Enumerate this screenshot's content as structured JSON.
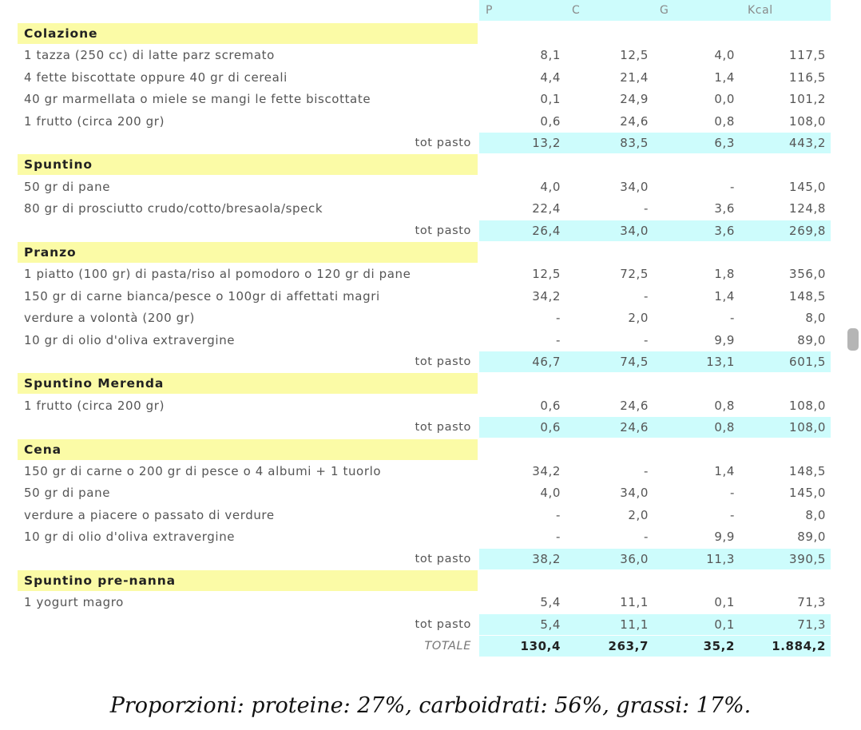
{
  "columns": [
    "P",
    "C",
    "G",
    "Kcal"
  ],
  "tot_label": "tot pasto",
  "sections": [
    {
      "title": "Colazione",
      "items": [
        {
          "label": "1 tazza (250 cc) di latte parz scremato",
          "p": "8,1",
          "c": "12,5",
          "g": "4,0",
          "k": "117,5"
        },
        {
          "label": "4 fette biscottate oppure 40 gr di cereali",
          "p": "4,4",
          "c": "21,4",
          "g": "1,4",
          "k": "116,5"
        },
        {
          "label": "40 gr marmellata o miele se mangi le fette biscottate",
          "p": "0,1",
          "c": "24,9",
          "g": "0,0",
          "k": "101,2"
        },
        {
          "label": "1 frutto (circa 200 gr)",
          "p": "0,6",
          "c": "24,6",
          "g": "0,8",
          "k": "108,0"
        }
      ],
      "total": {
        "p": "13,2",
        "c": "83,5",
        "g": "6,3",
        "k": "443,2"
      }
    },
    {
      "title": "Spuntino",
      "items": [
        {
          "label": "50 gr di pane",
          "p": "4,0",
          "c": "34,0",
          "g": "-",
          "k": "145,0"
        },
        {
          "label": "80 gr di prosciutto crudo/cotto/bresaola/speck",
          "p": "22,4",
          "c": "-",
          "g": "3,6",
          "k": "124,8"
        }
      ],
      "total": {
        "p": "26,4",
        "c": "34,0",
        "g": "3,6",
        "k": "269,8"
      }
    },
    {
      "title": "Pranzo",
      "items": [
        {
          "label": "1 piatto (100 gr) di pasta/riso al pomodoro o 120 gr di pane",
          "p": "12,5",
          "c": "72,5",
          "g": "1,8",
          "k": "356,0"
        },
        {
          "label": "150 gr di carne bianca/pesce o 100gr di affettati magri",
          "p": "34,2",
          "c": "-",
          "g": "1,4",
          "k": "148,5"
        },
        {
          "label": "verdure a volontà  (200 gr)",
          "p": "-",
          "c": "2,0",
          "g": "-",
          "k": "8,0"
        },
        {
          "label": "10 gr di olio d'oliva extravergine",
          "p": "-",
          "c": "-",
          "g": "9,9",
          "k": "89,0"
        }
      ],
      "total": {
        "p": "46,7",
        "c": "74,5",
        "g": "13,1",
        "k": "601,5"
      }
    },
    {
      "title": "Spuntino Merenda",
      "items": [
        {
          "label": "1 frutto (circa 200 gr)",
          "p": "0,6",
          "c": "24,6",
          "g": "0,8",
          "k": "108,0"
        }
      ],
      "total": {
        "p": "0,6",
        "c": "24,6",
        "g": "0,8",
        "k": "108,0"
      }
    },
    {
      "title": "Cena",
      "items": [
        {
          "label": "150 gr di carne o 200 gr di pesce o 4 albumi + 1 tuorlo",
          "p": "34,2",
          "c": "-",
          "g": "1,4",
          "k": "148,5"
        },
        {
          "label": "50 gr di pane",
          "p": "4,0",
          "c": "34,0",
          "g": "-",
          "k": "145,0"
        },
        {
          "label": "verdure a piacere o passato di verdure",
          "p": "-",
          "c": "2,0",
          "g": "-",
          "k": "8,0"
        },
        {
          "label": "10 gr di olio d'oliva extravergine",
          "p": "-",
          "c": "-",
          "g": "9,9",
          "k": "89,0"
        }
      ],
      "total": {
        "p": "38,2",
        "c": "36,0",
        "g": "11,3",
        "k": "390,5"
      }
    },
    {
      "title": "Spuntino pre-nanna",
      "items": [
        {
          "label": "1 yogurt magro",
          "p": "5,4",
          "c": "11,1",
          "g": "0,1",
          "k": "71,3"
        }
      ],
      "total": {
        "p": "5,4",
        "c": "11,1",
        "g": "0,1",
        "k": "71,3"
      }
    }
  ],
  "grand_total": {
    "label": "TOTALE",
    "p": "130,4",
    "c": "263,7",
    "g": "35,2",
    "k": "1.884,2"
  },
  "footer": "Proporzioni: proteine: 27%, carboidrati: 56%, grassi: 17%.",
  "colors": {
    "section_bg": "#fbfba6",
    "values_bg": "#cdfcfc"
  }
}
